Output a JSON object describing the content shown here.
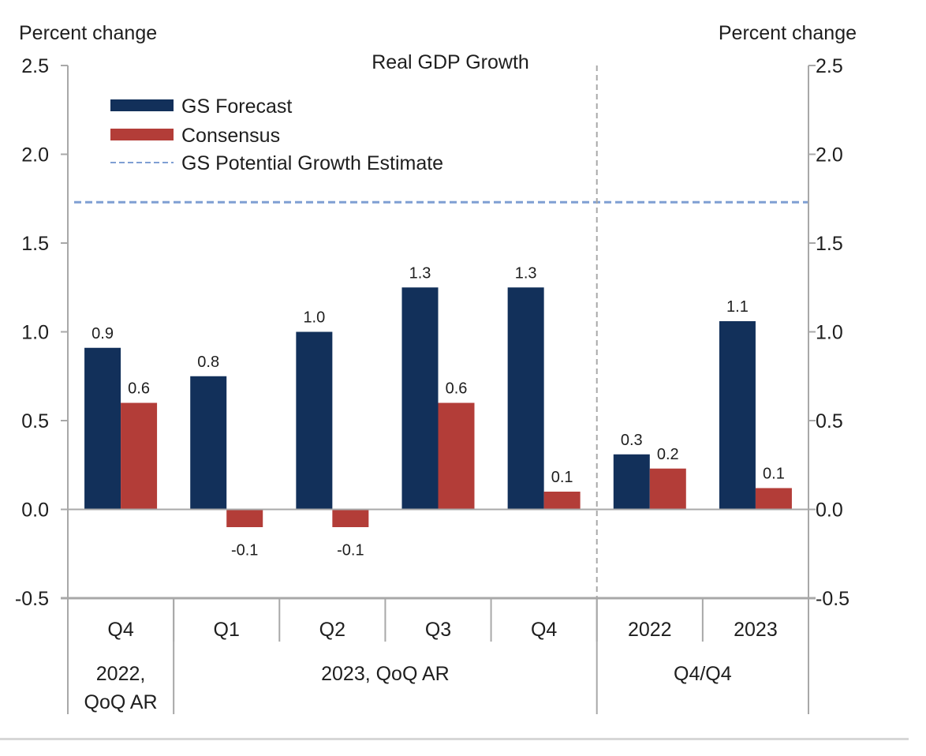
{
  "chart_data": {
    "type": "bar",
    "title": "Real GDP Growth",
    "ylabel_left": "Percent change",
    "ylabel_right": "Percent change",
    "ylim": [
      -0.5,
      2.5
    ],
    "yticks": [
      2.5,
      2.0,
      1.5,
      1.0,
      0.5,
      0.0,
      -0.5
    ],
    "ytick_labels": [
      "2.5",
      "2.0",
      "1.5",
      "1.0",
      "0.5",
      "0.0",
      "-0.5"
    ],
    "grid": false,
    "legend_position": "top-left",
    "categories": [
      "Q4",
      "Q1",
      "Q2",
      "Q3",
      "Q4",
      "2022",
      "2023"
    ],
    "category_groups": [
      {
        "label_lines": [
          "2022,",
          "QoQ AR"
        ],
        "span": [
          0,
          0
        ]
      },
      {
        "label_lines": [
          "2023, QoQ AR"
        ],
        "span": [
          1,
          4
        ]
      },
      {
        "label_lines": [
          "Q4/Q4"
        ],
        "span": [
          5,
          6
        ]
      }
    ],
    "separator_after_index": 4,
    "series": [
      {
        "name": "GS Forecast",
        "color": "#12305a",
        "values": [
          0.91,
          0.75,
          1.0,
          1.25,
          1.25,
          0.31,
          1.06
        ],
        "labels": [
          "0.9",
          "0.8",
          "1.0",
          "1.3",
          "1.3",
          "0.3",
          "1.1"
        ]
      },
      {
        "name": "Consensus",
        "color": "#b33d38",
        "values": [
          0.6,
          -0.1,
          -0.1,
          0.6,
          0.1,
          0.23,
          0.12
        ],
        "labels": [
          "0.6",
          "-0.1",
          "-0.1",
          "0.6",
          "0.1",
          "0.2",
          "0.1"
        ]
      }
    ],
    "reference_lines": [
      {
        "name": "GS Potential Growth Estimate",
        "value": 1.73,
        "color": "#7f9fd3",
        "style": "dashed"
      }
    ]
  }
}
